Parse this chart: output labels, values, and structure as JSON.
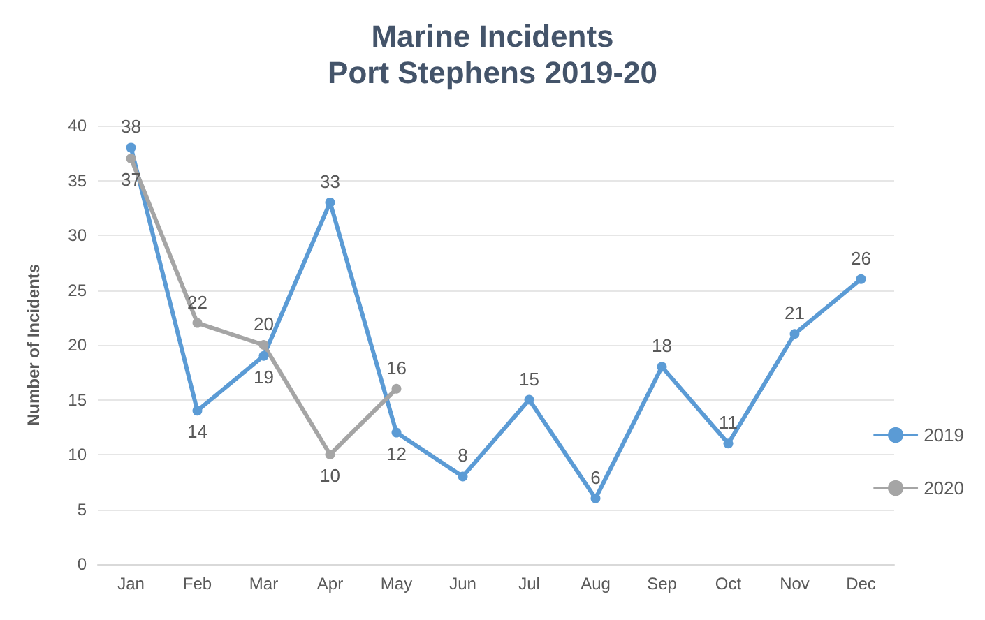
{
  "chart_data": {
    "type": "line",
    "title": "Marine Incidents",
    "subtitle": "Port Stephens 2019-20",
    "ylabel": "Number of Incidents",
    "categories": [
      "Jan",
      "Feb",
      "Mar",
      "Apr",
      "May",
      "Jun",
      "Jul",
      "Aug",
      "Sep",
      "Oct",
      "Nov",
      "Dec"
    ],
    "series": [
      {
        "name": "2019",
        "color": "#5b9bd5",
        "values": [
          38,
          14,
          19,
          33,
          12,
          8,
          15,
          6,
          18,
          11,
          21,
          26
        ]
      },
      {
        "name": "2020",
        "color": "#a5a5a5",
        "values": [
          37,
          22,
          20,
          10,
          16,
          null,
          null,
          null,
          null,
          null,
          null,
          null
        ]
      }
    ],
    "ylim": [
      0,
      40
    ],
    "yticks": [
      0,
      5,
      10,
      15,
      20,
      25,
      30,
      35,
      40
    ],
    "grid": "y",
    "legend": "right",
    "marker": "circle",
    "data_labels": true
  }
}
